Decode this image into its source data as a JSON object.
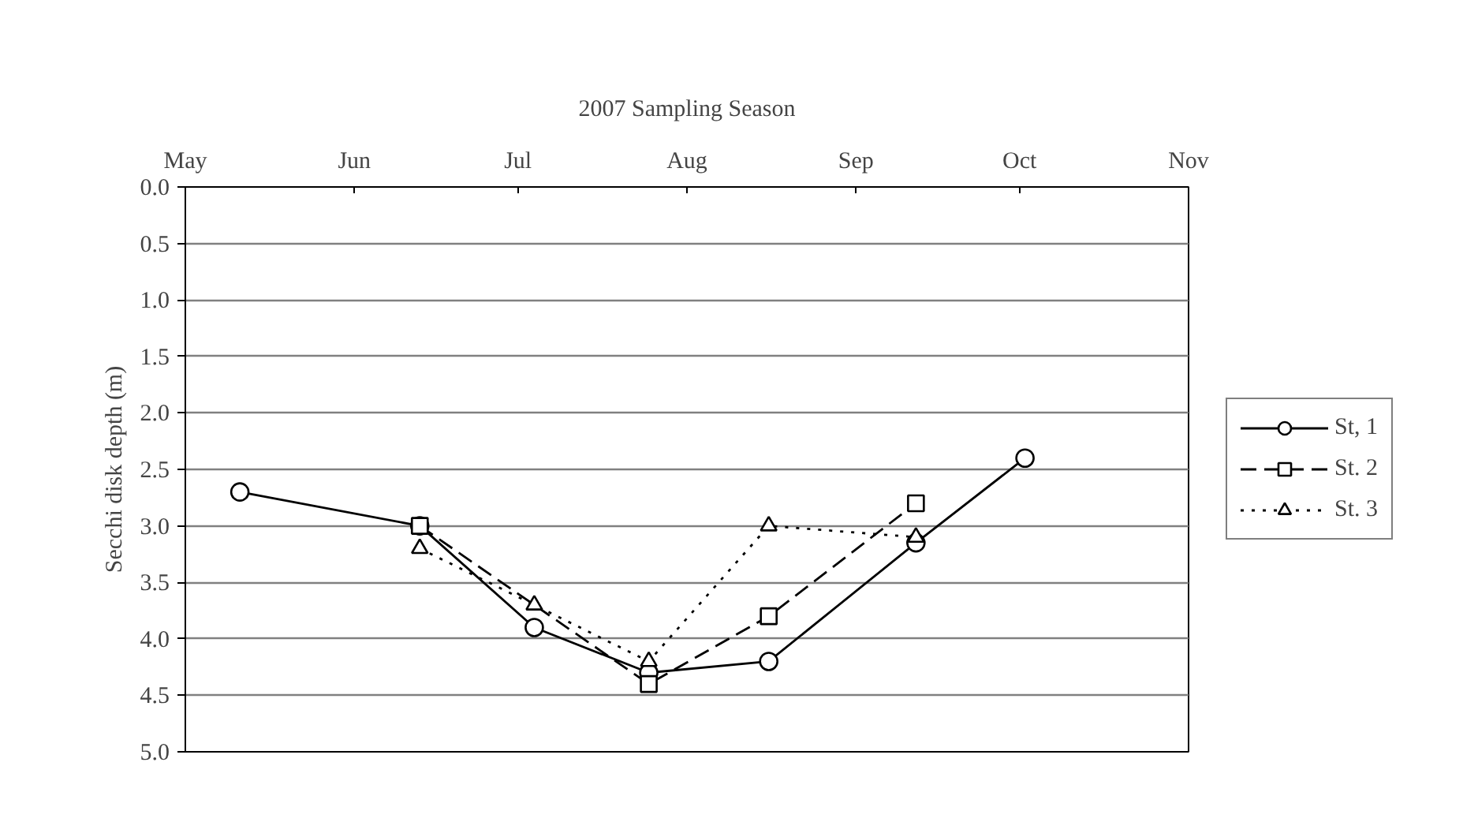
{
  "chart_data": {
    "type": "line",
    "xlabel": "2007 Sampling Season",
    "ylabel": "Secchi disk depth (m)",
    "xlim": [
      "2007-05-01",
      "2007-11-01"
    ],
    "xticks": [
      {
        "value": "2007-05-01",
        "label": "May"
      },
      {
        "value": "2007-06-01",
        "label": "Jun"
      },
      {
        "value": "2007-07-01",
        "label": "Jul"
      },
      {
        "value": "2007-08-01",
        "label": "Aug"
      },
      {
        "value": "2007-09-01",
        "label": "Sep"
      },
      {
        "value": "2007-10-01",
        "label": "Oct"
      },
      {
        "value": "2007-11-01",
        "label": "Nov"
      }
    ],
    "ylim": [
      5,
      0
    ],
    "yticks": [
      {
        "value": 0,
        "label": "0.0"
      },
      0.5,
      {
        "value": 1,
        "label": "1.0"
      },
      1.5,
      {
        "value": 2,
        "label": "2.0"
      },
      2.5,
      {
        "value": 3,
        "label": "3.0"
      },
      3.5,
      {
        "value": 4,
        "label": "4.0"
      },
      4.5,
      {
        "value": 5,
        "label": "5.0"
      }
    ],
    "grid": "y",
    "legend": "right",
    "series": [
      {
        "name": "St, 1",
        "color": "#000000",
        "marker": "circle",
        "line_style": "solid",
        "x": [
          "2007-05-11",
          "2007-06-13",
          "2007-07-04",
          "2007-07-25",
          "2007-08-16",
          "2007-09-12",
          "2007-10-02"
        ],
        "values": [
          2.7,
          3.0,
          3.9,
          4.3,
          4.2,
          3.15,
          2.4
        ]
      },
      {
        "name": "St. 2",
        "color": "#000000",
        "marker": "square",
        "line_style": "dashed",
        "x": [
          "2007-06-13",
          "2007-07-25",
          "2007-08-16",
          "2007-09-12"
        ],
        "values": [
          3.0,
          4.4,
          3.8,
          2.8
        ]
      },
      {
        "name": "St. 3",
        "color": "#000000",
        "marker": "triangle",
        "line_style": "dotted",
        "x": [
          "2007-06-13",
          "2007-07-04",
          "2007-07-25",
          "2007-08-16",
          "2007-09-12"
        ],
        "values": [
          3.2,
          3.7,
          4.2,
          3.0,
          3.1
        ]
      }
    ]
  }
}
